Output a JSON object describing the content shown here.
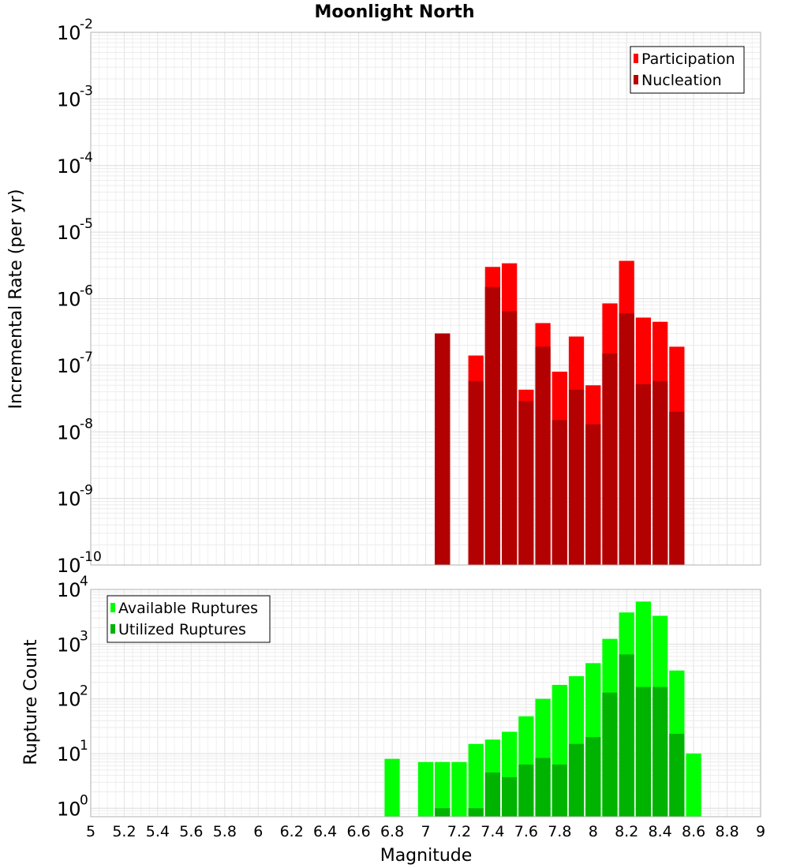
{
  "title": "Moonlight North",
  "colors": {
    "participation": "#ff0000",
    "nucleation": "#b30000",
    "available": "#00ff00",
    "utilized": "#00b300",
    "grid": "#e6e6e6",
    "frame": "#b0b0b0"
  },
  "chart_data": [
    {
      "type": "bar",
      "title": "Moonlight North",
      "xlabel": "",
      "ylabel": "Incremental Rate (per yr)",
      "xlim": [
        5,
        9
      ],
      "ylim": [
        1e-10,
        0.01
      ],
      "yscale": "log",
      "grid": true,
      "legend_position": "top-right",
      "bin_width": 0.1,
      "x": [
        7.1,
        7.2,
        7.3,
        7.4,
        7.5,
        7.6,
        7.7,
        7.8,
        7.9,
        8.0,
        8.1,
        8.2,
        8.3,
        8.4,
        8.5,
        8.6
      ],
      "series": [
        {
          "name": "Participation",
          "color": "#ff0000",
          "values": [
            3e-07,
            null,
            1.4e-07,
            3e-06,
            3.4e-06,
            4.3e-08,
            4.3e-07,
            8e-08,
            2.7e-07,
            5e-08,
            8.5e-07,
            3.7e-06,
            5.2e-07,
            4.5e-07,
            1.9e-07,
            null
          ]
        },
        {
          "name": "Nucleation",
          "color": "#b30000",
          "values": [
            3e-07,
            null,
            5.8e-08,
            1.5e-06,
            6.5e-07,
            2.9e-08,
            1.9e-07,
            1.5e-08,
            4.3e-08,
            1.3e-08,
            1.5e-07,
            6e-07,
            5.2e-08,
            5.8e-08,
            2e-08,
            null
          ]
        }
      ]
    },
    {
      "type": "bar",
      "title": "",
      "xlabel": "Magnitude",
      "ylabel": "Rupture Count",
      "xlim": [
        5,
        9
      ],
      "ylim": [
        0.7,
        10000
      ],
      "yscale": "log",
      "grid": true,
      "legend_position": "top-left",
      "bin_width": 0.1,
      "x": [
        6.8,
        6.9,
        7.0,
        7.1,
        7.2,
        7.3,
        7.4,
        7.5,
        7.6,
        7.7,
        7.8,
        7.9,
        8.0,
        8.1,
        8.2,
        8.3,
        8.4,
        8.5,
        8.6,
        8.7
      ],
      "series": [
        {
          "name": "Available Ruptures",
          "color": "#00ff00",
          "values": [
            8,
            null,
            7,
            7,
            7,
            15,
            18,
            25,
            48,
            100,
            180,
            260,
            450,
            1250,
            3800,
            6000,
            3300,
            330,
            10,
            null
          ]
        },
        {
          "name": "Utilized Ruptures",
          "color": "#00b300",
          "values": [
            null,
            null,
            null,
            1,
            null,
            1,
            4.5,
            3.7,
            6.3,
            8.3,
            6.3,
            15,
            20,
            130,
            650,
            165,
            165,
            23,
            null,
            null
          ]
        }
      ]
    }
  ],
  "axes": {
    "x_ticks": [
      "5",
      "5.2",
      "5.4",
      "5.6",
      "5.8",
      "6",
      "6.2",
      "6.4",
      "6.6",
      "6.8",
      "7",
      "7.2",
      "7.4",
      "7.6",
      "7.8",
      "8",
      "8.2",
      "8.4",
      "8.6",
      "8.8",
      "9"
    ],
    "top_y_ticks": [
      {
        "base": "10",
        "exp": "-2"
      },
      {
        "base": "10",
        "exp": "-3"
      },
      {
        "base": "10",
        "exp": "-4"
      },
      {
        "base": "10",
        "exp": "-5"
      },
      {
        "base": "10",
        "exp": "-6"
      },
      {
        "base": "10",
        "exp": "-7"
      },
      {
        "base": "10",
        "exp": "-8"
      },
      {
        "base": "10",
        "exp": "-9"
      },
      {
        "base": "10",
        "exp": "-10"
      }
    ],
    "bottom_y_ticks": [
      {
        "base": "10",
        "exp": "4"
      },
      {
        "base": "10",
        "exp": "3"
      },
      {
        "base": "10",
        "exp": "2"
      },
      {
        "base": "10",
        "exp": "1"
      },
      {
        "base": "10",
        "exp": "0"
      }
    ]
  }
}
